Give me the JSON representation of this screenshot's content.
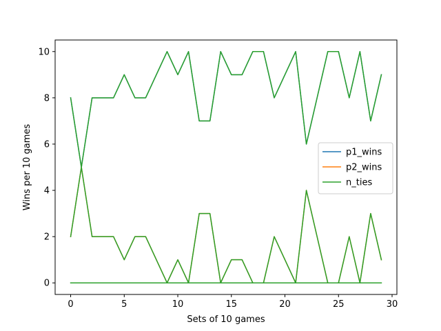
{
  "chart_data": {
    "type": "line",
    "title": "",
    "xlabel": "Sets of 10 games",
    "ylabel": "Wins per 10 games",
    "xlim": [
      -1.45,
      30.45
    ],
    "ylim": [
      -0.5,
      10.5
    ],
    "xticks": [
      0,
      5,
      10,
      15,
      20,
      25,
      30
    ],
    "yticks": [
      0,
      2,
      4,
      6,
      8,
      10
    ],
    "grid": false,
    "legend_position": "center-right",
    "x": [
      0,
      1,
      2,
      3,
      4,
      5,
      6,
      7,
      8,
      9,
      10,
      11,
      12,
      13,
      14,
      15,
      16,
      17,
      18,
      19,
      20,
      21,
      22,
      23,
      24,
      25,
      26,
      27,
      28,
      29
    ],
    "series": [
      {
        "name": "p1_wins",
        "color": "#1f77b4",
        "values": [
          8,
          5,
          8,
          8,
          8,
          9,
          8,
          8,
          9,
          10,
          9,
          10,
          7,
          7,
          10,
          9,
          9,
          10,
          10,
          8,
          9,
          10,
          6,
          8,
          10,
          10,
          8,
          10,
          7,
          9
        ]
      },
      {
        "name": "p2_wins",
        "color": "#ff7f0e",
        "values": [
          2,
          5,
          2,
          2,
          2,
          1,
          2,
          2,
          1,
          0,
          1,
          0,
          3,
          3,
          0,
          1,
          1,
          0,
          0,
          2,
          1,
          0,
          4,
          2,
          0,
          0,
          2,
          0,
          3,
          1
        ]
      },
      {
        "name": "n_ties",
        "color": "#2ca02c",
        "values": [
          0,
          0,
          0,
          0,
          0,
          0,
          0,
          0,
          0,
          0,
          0,
          0,
          0,
          0,
          0,
          0,
          0,
          0,
          0,
          0,
          0,
          0,
          0,
          0,
          0,
          0,
          0,
          0,
          0,
          0
        ]
      },
      {
        "name": "",
        "color": "#2ca02c",
        "values": [
          8,
          5,
          8,
          8,
          8,
          9,
          8,
          8,
          9,
          10,
          9,
          10,
          7,
          7,
          10,
          9,
          9,
          10,
          10,
          8,
          9,
          10,
          6,
          8,
          10,
          10,
          8,
          10,
          7,
          9
        ]
      },
      {
        "name": "",
        "color": "#2ca02c",
        "values": [
          2,
          5,
          2,
          2,
          2,
          1,
          2,
          2,
          1,
          0,
          1,
          0,
          3,
          3,
          0,
          1,
          1,
          0,
          0,
          2,
          1,
          0,
          4,
          2,
          0,
          0,
          2,
          0,
          3,
          1
        ]
      }
    ]
  }
}
